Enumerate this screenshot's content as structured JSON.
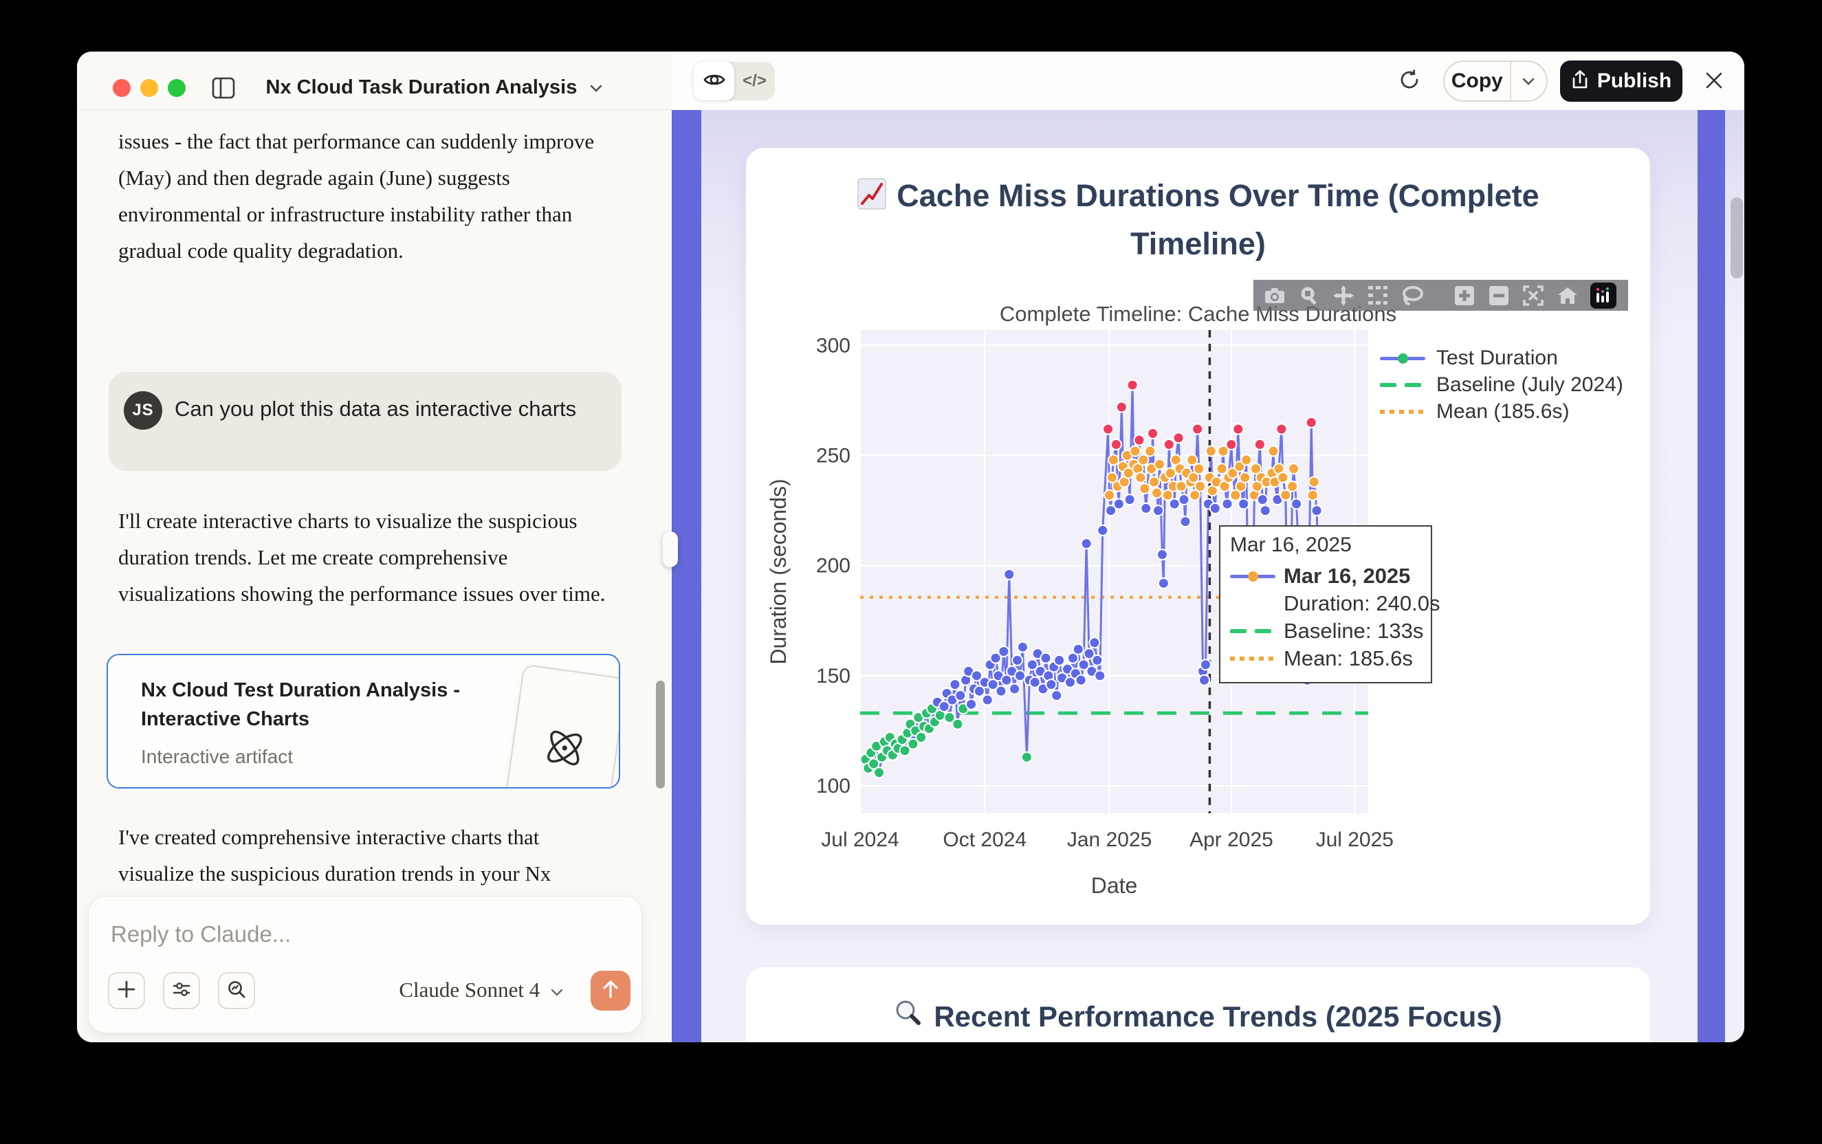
{
  "window": {
    "title": "Nx Cloud Task Duration Analysis"
  },
  "chat": {
    "paragraph_1": "issues - the fact that performance can suddenly improve (May) and then degrade again (June) suggests environmental or infrastructure instability rather than gradual code quality degradation.",
    "user_message": {
      "avatar_initials": "JS",
      "text": "Can you plot this data as interactive charts"
    },
    "paragraph_2": "I'll create interactive charts to visualize the suspicious duration trends. Let me create comprehensive visualizations showing the performance issues over time.",
    "artifact_card": {
      "title": "Nx Cloud Test Duration Analysis - Interactive Charts",
      "subtitle": "Interactive artifact"
    },
    "paragraph_3": "I've created comprehensive interactive charts that visualize the suspicious duration trends in your Nx Cloud test data. Here's what the",
    "composer": {
      "placeholder": "Reply to Claude...",
      "model": "Claude Sonnet 4"
    }
  },
  "artifact": {
    "toolbar": {
      "copy_label": "Copy",
      "publish_label": "Publish"
    },
    "code_toggle_label": "</>",
    "trends_title": "Recent Performance Trends (2025 Focus)"
  },
  "chart_data": {
    "type": "scatter-line",
    "title_line1": "Cache Miss Durations Over Time (Complete",
    "title_line2": "Timeline)",
    "subtitle": "Complete Timeline: Cache Miss Durations",
    "xlabel": "Date",
    "ylabel": "Duration (seconds)",
    "y_ticks": [
      100,
      150,
      200,
      250,
      300
    ],
    "x_ticks": [
      {
        "label": "Jul 2024",
        "day": 0
      },
      {
        "label": "Oct 2024",
        "day": 92
      },
      {
        "label": "Jan 2025",
        "day": 184
      },
      {
        "label": "Apr 2025",
        "day": 274
      },
      {
        "label": "Jul 2025",
        "day": 365
      }
    ],
    "x_range_days": [
      0,
      375
    ],
    "y_range": [
      87.5,
      307
    ],
    "grid": true,
    "legend_position": "top-right",
    "legend": [
      {
        "label": "Test Duration",
        "symbol": "line-dot"
      },
      {
        "label": "Baseline (July 2024)",
        "symbol": "green-dash"
      },
      {
        "label": "Mean (185.6s)",
        "symbol": "orange-dots"
      }
    ],
    "baseline_value": 133,
    "mean_value": 185.6,
    "hover_day": 258,
    "tooltip": {
      "axis_date": "Mar 16, 2025",
      "point_date": "Mar 16, 2025",
      "duration": "Duration: 240.0s",
      "baseline": "Baseline: 133s",
      "mean": "Mean: 185.6s"
    },
    "colors": {
      "line": "#6e74e9",
      "baseline": "#2dc86f",
      "mean": "#f5a63a",
      "hover_line": "#333333",
      "plot_bg": "#f2f1f9",
      "grid": "#ffffff",
      "tick_text": "#444444"
    },
    "marker_thresholds": [
      {
        "max": 135,
        "color": "#2dbd6e"
      },
      {
        "max": 231.5,
        "color": "#5e68e6"
      },
      {
        "max": 254.5,
        "color": "#f6a53c"
      },
      {
        "max": 1000,
        "color": "#ee3a5d"
      }
    ],
    "series_name": "Test Duration",
    "days": [
      4,
      6,
      8,
      10,
      12,
      14,
      16,
      18,
      20,
      22,
      24,
      26,
      28,
      31,
      33,
      35,
      37,
      39,
      41,
      43,
      45,
      47,
      49,
      51,
      53,
      55,
      57,
      59,
      62,
      64,
      66,
      68,
      70,
      72,
      74,
      76,
      78,
      80,
      82,
      84,
      86,
      88,
      92,
      94,
      96,
      98,
      100,
      102,
      104,
      106,
      108,
      110,
      112,
      114,
      116,
      118,
      120,
      123,
      125,
      127,
      129,
      131,
      133,
      135,
      137,
      139,
      141,
      143,
      145,
      147,
      149,
      153,
      155,
      157,
      159,
      161,
      163,
      165,
      167,
      169,
      171,
      173,
      175,
      177,
      179,
      183,
      184,
      185,
      186,
      187,
      189,
      190,
      191,
      193,
      194,
      195,
      197,
      198,
      199,
      201,
      202,
      203,
      205,
      206,
      207,
      209,
      210,
      211,
      214,
      215,
      216,
      217,
      219,
      220,
      221,
      223,
      224,
      225,
      227,
      228,
      229,
      231,
      232,
      233,
      235,
      236,
      237,
      239,
      240,
      241,
      244,
      245,
      246,
      247,
      249,
      250,
      251,
      253,
      254,
      255,
      257,
      258,
      259,
      260,
      262,
      263,
      267,
      268,
      269,
      271,
      272,
      274,
      275,
      277,
      279,
      280,
      281,
      283,
      284,
      285,
      287,
      288,
      289,
      291,
      292,
      293,
      295,
      296,
      297,
      299,
      300,
      304,
      305,
      306,
      308,
      309,
      311,
      312,
      314,
      316,
      317,
      319,
      320,
      322,
      328,
      330,
      333,
      334,
      335,
      337,
      340
    ],
    "values": [
      112,
      108,
      115,
      110,
      118,
      106,
      113,
      120,
      116,
      122,
      114,
      119,
      117,
      121,
      116,
      124,
      128,
      119,
      125,
      131,
      122,
      127,
      133,
      126,
      135,
      129,
      138,
      132,
      136,
      142,
      131,
      139,
      146,
      128,
      141,
      135,
      148,
      152,
      137,
      144,
      150,
      143,
      147,
      139,
      155,
      146,
      158,
      150,
      143,
      161,
      148,
      196,
      152,
      144,
      157,
      150,
      163,
      113,
      148,
      155,
      147,
      160,
      152,
      144,
      158,
      150,
      146,
      154,
      141,
      157,
      149,
      153,
      147,
      158,
      151,
      162,
      148,
      155,
      210,
      160,
      152,
      165,
      157,
      150,
      216,
      262,
      232,
      225,
      240,
      248,
      255,
      236,
      228,
      272,
      245,
      238,
      250,
      242,
      230,
      282,
      246,
      252,
      244,
      257,
      240,
      248,
      235,
      226,
      252,
      244,
      260,
      238,
      233,
      225,
      246,
      205,
      192,
      240,
      232,
      255,
      242,
      236,
      228,
      248,
      258,
      244,
      236,
      230,
      220,
      242,
      238,
      248,
      240,
      232,
      262,
      244,
      236,
      152,
      148,
      155,
      228,
      240,
      252,
      234,
      226,
      238,
      244,
      252,
      236,
      228,
      240,
      255,
      242,
      232,
      262,
      245,
      236,
      228,
      240,
      248,
      155,
      150,
      158,
      232,
      244,
      236,
      255,
      240,
      230,
      225,
      238,
      242,
      252,
      238,
      230,
      244,
      262,
      240,
      232,
      158,
      150,
      236,
      244,
      228,
      150,
      148,
      265,
      232,
      238,
      225,
      155
    ]
  }
}
